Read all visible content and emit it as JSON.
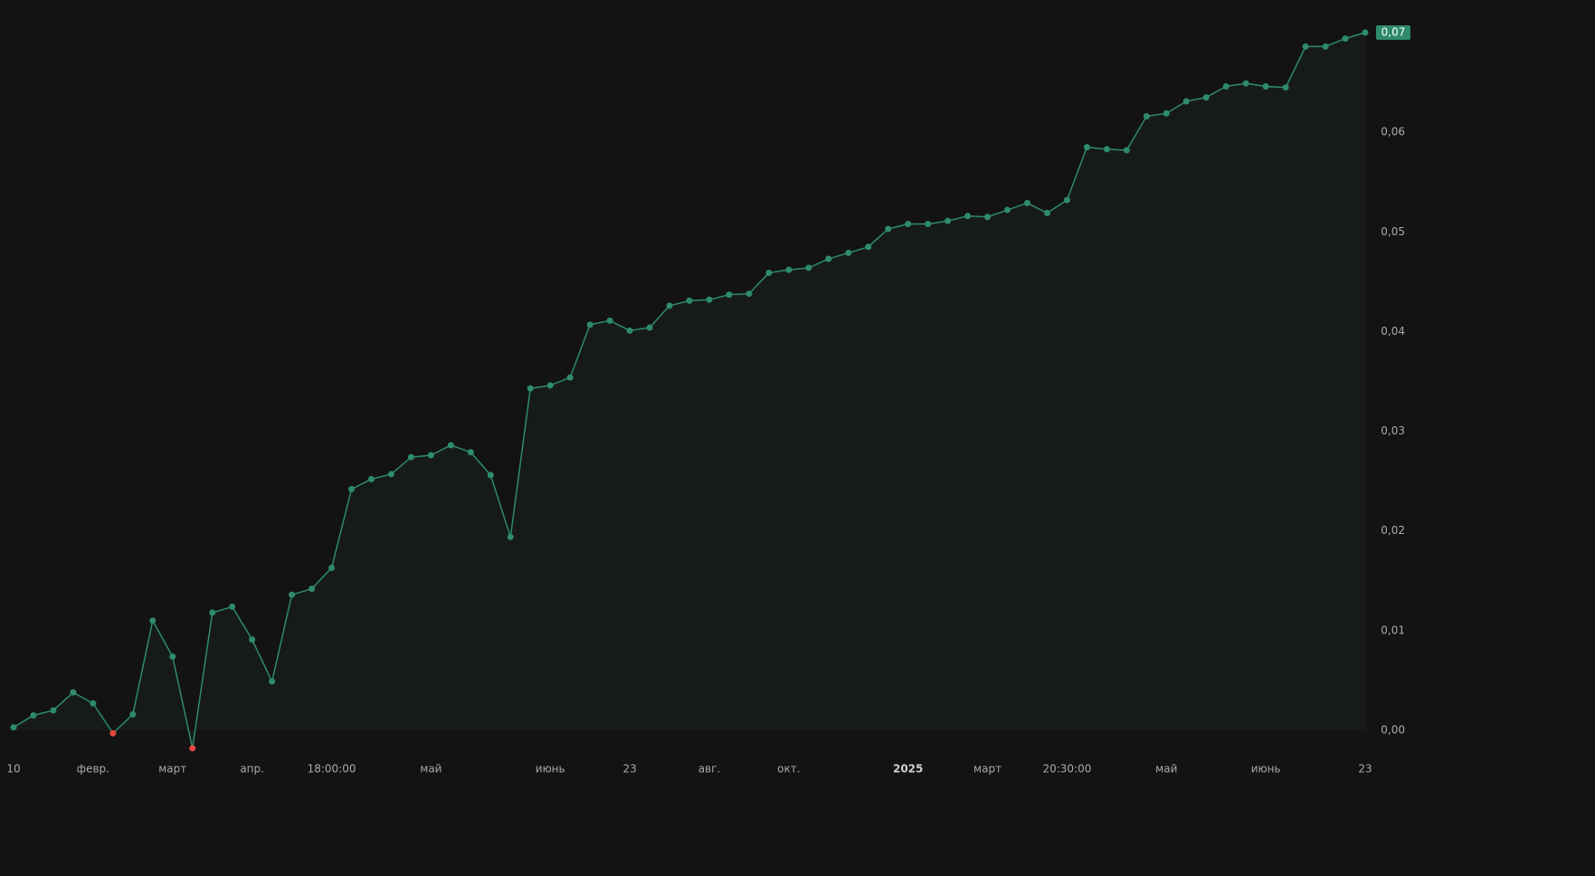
{
  "chart_data": {
    "type": "line",
    "categories": [
      "10",
      null,
      null,
      null,
      "февр.",
      null,
      null,
      null,
      "март",
      null,
      null,
      null,
      "апр.",
      null,
      null,
      null,
      "18:00:00",
      null,
      null,
      null,
      null,
      "май",
      null,
      null,
      null,
      null,
      null,
      "июнь",
      null,
      null,
      null,
      "23",
      null,
      null,
      null,
      "авг.",
      null,
      null,
      null,
      "окт.",
      null,
      null,
      null,
      null,
      null,
      "2025",
      null,
      null,
      null,
      "март",
      null,
      null,
      null,
      "20:30:00",
      null,
      null,
      null,
      null,
      "май",
      null,
      null,
      null,
      null,
      "июнь",
      null,
      null,
      null,
      null,
      "23"
    ],
    "values": [
      0.0003,
      0.0015,
      0.002,
      0.0038,
      0.0027,
      -0.0003,
      0.0016,
      0.011,
      0.0074,
      -0.0018,
      0.0118,
      0.0124,
      0.0091,
      0.0049,
      0.0136,
      0.0142,
      0.0163,
      0.0242,
      0.0252,
      0.0257,
      0.0274,
      0.0276,
      0.0286,
      0.0279,
      0.0256,
      0.0194,
      0.0343,
      0.0346,
      0.0354,
      0.0407,
      0.0411,
      0.0401,
      0.0404,
      0.0426,
      0.0431,
      0.0432,
      0.0437,
      0.0438,
      0.0459,
      0.0462,
      0.0464,
      0.0473,
      0.0479,
      0.0485,
      0.0503,
      0.0508,
      0.0508,
      0.0511,
      0.0516,
      0.0515,
      0.0522,
      0.0529,
      0.0519,
      0.0532,
      0.0585,
      0.0583,
      0.0582,
      0.0616,
      0.0619,
      0.0631,
      0.0635,
      0.0646,
      0.0649,
      0.0646,
      0.0645,
      0.0686,
      0.0686,
      0.0694,
      0.07
    ],
    "value_labels": [
      null,
      null,
      null,
      null,
      null,
      null,
      null,
      null,
      null,
      null,
      null,
      null,
      null,
      null,
      null,
      null,
      null,
      null,
      null,
      null,
      null,
      null,
      null,
      null,
      null,
      null,
      null,
      null,
      null,
      null,
      null,
      null,
      null,
      null,
      null,
      null,
      null,
      null,
      null,
      null,
      null,
      null,
      null,
      null,
      null,
      null,
      null,
      null,
      null,
      null,
      null,
      null,
      null,
      null,
      null,
      null,
      null,
      null,
      null,
      null,
      null,
      null,
      null,
      null,
      null,
      null,
      null,
      null,
      "0,07"
    ],
    "color": "#2e8b6e",
    "negative_color": "#e5473f",
    "ylim": [
      0,
      0.07
    ],
    "yticks": [
      {
        "value": 0,
        "label": "0,00"
      },
      {
        "value": 0.01,
        "label": "0,01"
      },
      {
        "value": 0.02,
        "label": "0,02"
      },
      {
        "value": 0.03,
        "label": "0,03"
      },
      {
        "value": 0.04,
        "label": "0,04"
      },
      {
        "value": 0.05,
        "label": "0,05"
      },
      {
        "value": 0.06,
        "label": "0,06"
      }
    ]
  }
}
